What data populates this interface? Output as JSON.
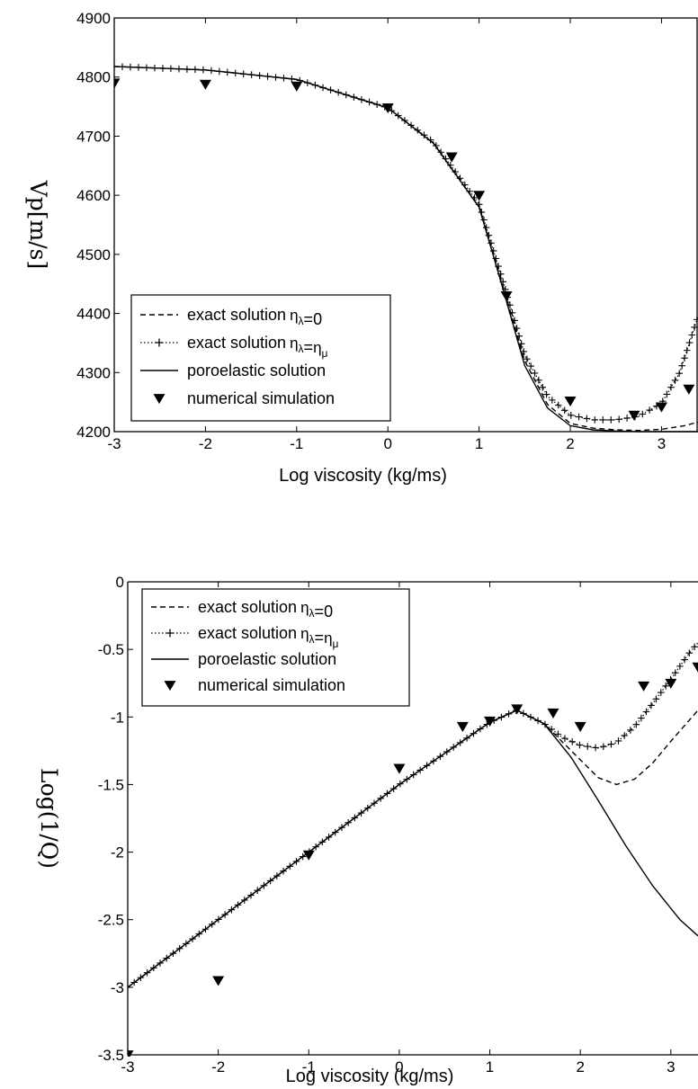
{
  "chart_data": [
    {
      "type": "line",
      "ylabel": "Vp[m/s]",
      "xlabel": "Log viscosity (kg/ms)",
      "xlim": [
        -3,
        3.4
      ],
      "ylim": [
        4200,
        4900
      ],
      "xticks": [
        "-3",
        "-2",
        "-1",
        "0",
        "1",
        "2",
        "3"
      ],
      "yticks": [
        "4200",
        "4300",
        "4400",
        "4500",
        "4600",
        "4700",
        "4800",
        "4900"
      ],
      "grid": false,
      "legend_position": "bottom-left",
      "series": [
        {
          "name": "exact solution",
          "subscript_label": "η_λ=0",
          "style": "dashed",
          "x": [
            -3,
            -2,
            -1,
            0,
            0.5,
            1,
            1.25,
            1.5,
            1.75,
            2,
            2.25,
            2.5,
            2.75,
            3,
            3.25,
            3.4
          ],
          "values": [
            4818,
            4812,
            4796,
            4748,
            4688,
            4580,
            4452,
            4320,
            4246,
            4214,
            4206,
            4203,
            4202,
            4204,
            4210,
            4216
          ]
        },
        {
          "name": "exact solution",
          "subscript_label": "η_λ=η_μ",
          "style": "dotted-plus",
          "x": [
            -3,
            -2,
            -1,
            0,
            0.5,
            1,
            1.25,
            1.5,
            1.75,
            2,
            2.25,
            2.5,
            2.75,
            3,
            3.2,
            3.4
          ],
          "values": [
            4818,
            4812,
            4796,
            4748,
            4690,
            4585,
            4460,
            4330,
            4260,
            4228,
            4220,
            4220,
            4226,
            4248,
            4300,
            4395
          ]
        },
        {
          "name": "poroelastic solution",
          "style": "solid",
          "x": [
            -3,
            -2,
            -1,
            0,
            0.5,
            1,
            1.25,
            1.5,
            1.75,
            2,
            2.25,
            2.5,
            2.75,
            3,
            3.4
          ],
          "values": [
            4818,
            4812,
            4796,
            4748,
            4688,
            4580,
            4448,
            4312,
            4240,
            4210,
            4203,
            4201,
            4200,
            4200,
            4200
          ]
        },
        {
          "name": "numerical simulation",
          "style": "markers",
          "x": [
            -3,
            -2,
            -1,
            0,
            0.7,
            1,
            1.3,
            2,
            2.7,
            3,
            3.3
          ],
          "values": [
            4790,
            4788,
            4785,
            4748,
            4665,
            4600,
            4430,
            4252,
            4228,
            4242,
            4272
          ]
        }
      ]
    },
    {
      "type": "line",
      "ylabel": "Log(1/Q)",
      "xlabel": "Log viscosity (kg/ms)",
      "xlim": [
        -3,
        3.3
      ],
      "ylim": [
        -3.5,
        0
      ],
      "xticks": [
        "-3",
        "-2",
        "-1",
        "0",
        "1",
        "2",
        "3"
      ],
      "yticks": [
        "-3.5",
        "-3",
        "-2.5",
        "-2",
        "-1.5",
        "-1",
        "-0.5",
        "0"
      ],
      "grid": false,
      "legend_position": "top-left",
      "series": [
        {
          "name": "exact solution",
          "subscript_label": "η_λ=0",
          "style": "dashed",
          "x": [
            -3,
            -2,
            -1,
            0,
            1,
            1.3,
            1.6,
            1.9,
            2.2,
            2.4,
            2.6,
            2.8,
            3.0,
            3.3
          ],
          "values": [
            -3.0,
            -2.5,
            -2.0,
            -1.5,
            -1.04,
            -0.95,
            -1.05,
            -1.25,
            -1.45,
            -1.5,
            -1.46,
            -1.34,
            -1.18,
            -0.95
          ]
        },
        {
          "name": "exact solution",
          "subscript_label": "η_λ=η_μ",
          "style": "dotted-plus",
          "x": [
            -3,
            -2,
            -1,
            0,
            1,
            1.3,
            1.6,
            1.8,
            2.0,
            2.2,
            2.4,
            2.6,
            2.8,
            3.0,
            3.2,
            3.3
          ],
          "values": [
            -3.0,
            -2.5,
            -2.0,
            -1.5,
            -1.04,
            -0.95,
            -1.05,
            -1.15,
            -1.21,
            -1.23,
            -1.19,
            -1.07,
            -0.9,
            -0.72,
            -0.53,
            -0.45
          ]
        },
        {
          "name": "poroelastic solution",
          "style": "solid",
          "x": [
            -3,
            -2,
            -1,
            0,
            1,
            1.3,
            1.6,
            1.9,
            2.2,
            2.5,
            2.8,
            3.1,
            3.3
          ],
          "values": [
            -3.0,
            -2.5,
            -2.0,
            -1.5,
            -1.04,
            -0.95,
            -1.05,
            -1.3,
            -1.62,
            -1.95,
            -2.25,
            -2.5,
            -2.62
          ]
        },
        {
          "name": "numerical simulation",
          "style": "markers",
          "x": [
            -3,
            -2,
            -1,
            0,
            0.7,
            1,
            1.3,
            1.7,
            2,
            2.7,
            3,
            3.3
          ],
          "values": [
            -3.5,
            -2.95,
            -2.02,
            -1.38,
            -1.07,
            -1.03,
            -0.94,
            -0.97,
            -1.07,
            -0.77,
            -0.75,
            -0.63
          ]
        }
      ]
    }
  ]
}
